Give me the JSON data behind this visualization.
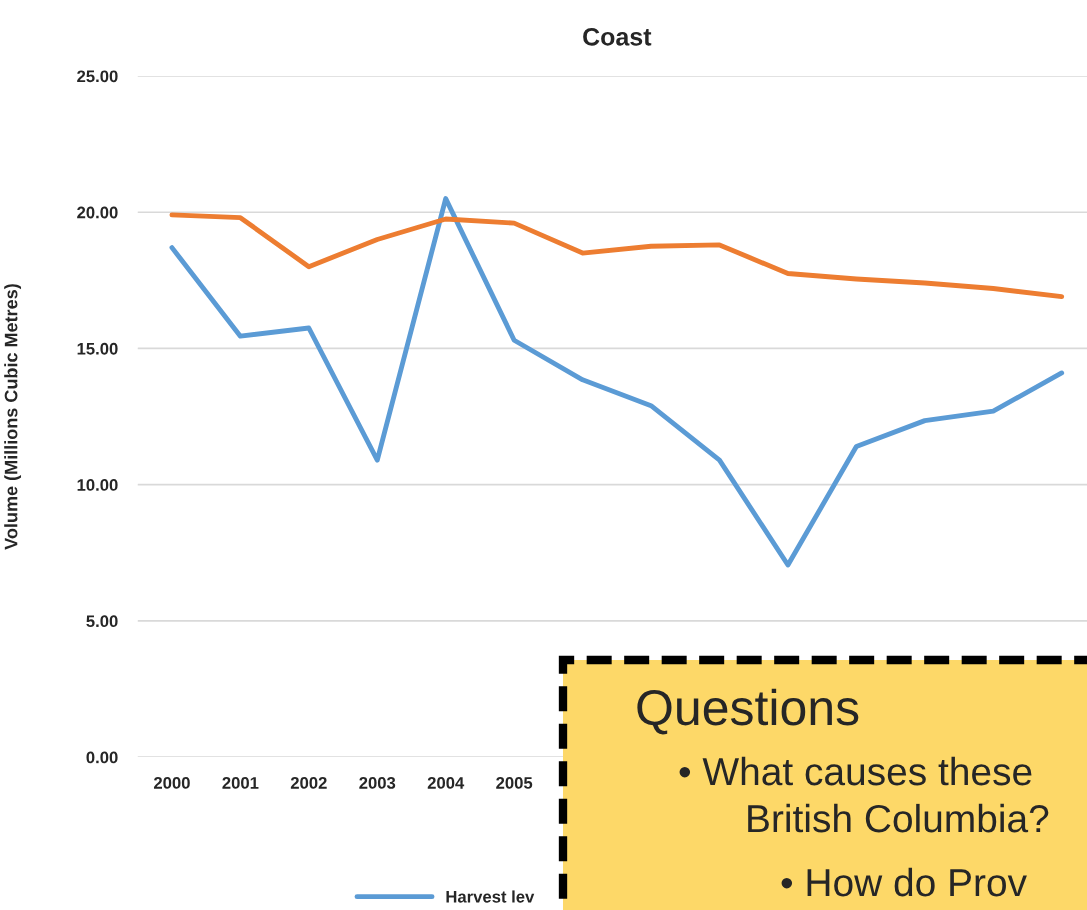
{
  "chart_data": {
    "type": "line",
    "title": "Coast",
    "ylabel": "Volume (Millions Cubic Metres)",
    "categories": [
      "2000",
      "2001",
      "2002",
      "2003",
      "2004",
      "2005",
      null,
      null,
      null,
      null,
      null,
      null,
      null,
      null
    ],
    "series": [
      {
        "name": "Harvest lev",
        "color": "#5b9bd5",
        "values": [
          18.7,
          15.45,
          15.75,
          10.9,
          20.5,
          15.3,
          13.85,
          12.9,
          10.9,
          7.05,
          11.4,
          12.35,
          12.7,
          14.1
        ]
      },
      {
        "color": "#ed7d31",
        "values": [
          19.9,
          19.8,
          18.0,
          19.0,
          19.75,
          19.6,
          18.5,
          18.75,
          18.8,
          17.75,
          17.55,
          17.4,
          17.2,
          16.9
        ]
      }
    ],
    "ylim": [
      0,
      25
    ],
    "yticks": [
      {
        "value": 0,
        "label": "0.00"
      },
      {
        "value": 5,
        "label": "5.00"
      },
      {
        "value": 10,
        "label": "10.00"
      },
      {
        "value": 15,
        "label": "15.00"
      },
      {
        "value": 20,
        "label": "20.00"
      },
      {
        "value": 25,
        "label": "25.00"
      }
    ],
    "grid": "y",
    "legend": "bottom",
    "marker": "none",
    "line_style": "solid",
    "annotations": [
      "Questions",
      "• What causes these",
      "British Columbia?",
      "• How do Prov"
    ]
  }
}
